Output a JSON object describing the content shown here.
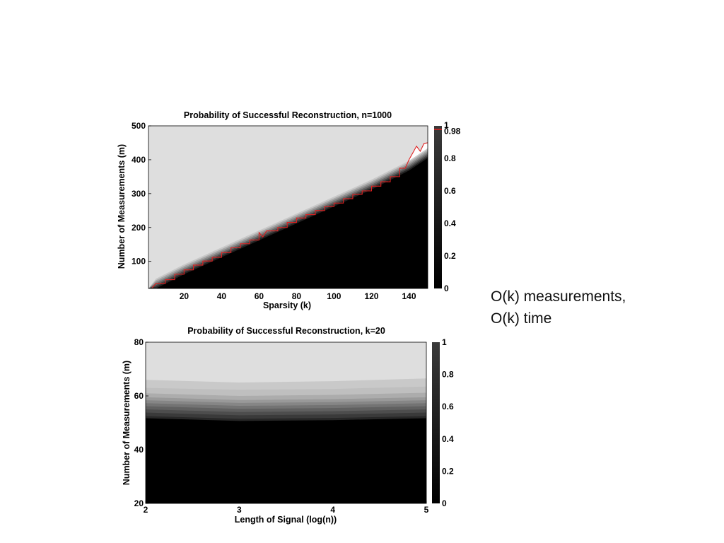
{
  "slide": {
    "caption_lines": [
      "O(k) measurements,",
      "O(k) time"
    ]
  },
  "chart_data": [
    {
      "type": "heatmap",
      "title": "Probability of Successful Reconstruction, n=1000",
      "xlabel": "Sparsity (k)",
      "ylabel": "Number of Measurements (m)",
      "xlim": [
        1,
        150
      ],
      "ylim": [
        20,
        500
      ],
      "xticks": [
        20,
        40,
        60,
        80,
        100,
        120,
        140
      ],
      "yticks": [
        100,
        200,
        300,
        400,
        500
      ],
      "colorbar": {
        "range": [
          0,
          1
        ],
        "ticks": [
          "0",
          "0.2",
          "0.4",
          "0.6",
          "0.8",
          "0.98",
          "1"
        ],
        "marker_value": 0.98
      },
      "transition_boundary": {
        "description": "failure region below, success region above",
        "points": [
          [
            5,
            20
          ],
          [
            20,
            62
          ],
          [
            40,
            112
          ],
          [
            60,
            162
          ],
          [
            80,
            212
          ],
          [
            100,
            262
          ],
          [
            120,
            312
          ],
          [
            140,
            368
          ],
          [
            150,
            405
          ]
        ]
      },
      "contour_098": {
        "color": "#e02020",
        "points": [
          [
            3,
            22
          ],
          [
            5,
            35
          ],
          [
            10,
            35
          ],
          [
            10,
            46
          ],
          [
            15,
            46
          ],
          [
            15,
            62
          ],
          [
            20,
            62
          ],
          [
            20,
            75
          ],
          [
            25,
            75
          ],
          [
            25,
            89
          ],
          [
            30,
            89
          ],
          [
            30,
            101
          ],
          [
            35,
            101
          ],
          [
            35,
            112
          ],
          [
            40,
            112
          ],
          [
            40,
            126
          ],
          [
            45,
            126
          ],
          [
            45,
            140
          ],
          [
            50,
            140
          ],
          [
            50,
            152
          ],
          [
            55,
            152
          ],
          [
            55,
            163
          ],
          [
            60,
            163
          ],
          [
            60,
            185
          ],
          [
            62,
            172
          ],
          [
            64,
            190
          ],
          [
            70,
            190
          ],
          [
            70,
            200
          ],
          [
            75,
            200
          ],
          [
            75,
            215
          ],
          [
            80,
            215
          ],
          [
            80,
            228
          ],
          [
            85,
            228
          ],
          [
            85,
            238
          ],
          [
            90,
            238
          ],
          [
            90,
            250
          ],
          [
            95,
            250
          ],
          [
            95,
            262
          ],
          [
            100,
            262
          ],
          [
            100,
            272
          ],
          [
            105,
            272
          ],
          [
            105,
            285
          ],
          [
            110,
            285
          ],
          [
            110,
            298
          ],
          [
            115,
            298
          ],
          [
            115,
            308
          ],
          [
            120,
            308
          ],
          [
            120,
            322
          ],
          [
            125,
            322
          ],
          [
            125,
            335
          ],
          [
            130,
            335
          ],
          [
            130,
            350
          ],
          [
            135,
            350
          ],
          [
            135,
            375
          ],
          [
            138,
            375
          ],
          [
            140,
            400
          ],
          [
            142,
            420
          ],
          [
            144,
            440
          ],
          [
            146,
            425
          ],
          [
            148,
            448
          ],
          [
            150,
            450
          ]
        ]
      }
    },
    {
      "type": "heatmap",
      "title": "Probability of Successful Reconstruction, k=20",
      "xlabel": "Length of Signal (log(n))",
      "ylabel": "Number of Measurements (m)",
      "xlim": [
        2,
        5
      ],
      "ylim": [
        20,
        80
      ],
      "xticks": [
        2,
        3,
        4,
        5
      ],
      "yticks": [
        20,
        40,
        60,
        80
      ],
      "colorbar": {
        "range": [
          0,
          1
        ],
        "ticks": [
          "0",
          "0.2",
          "0.4",
          "0.6",
          "0.8",
          "1"
        ]
      },
      "x": [
        2,
        3,
        4,
        5
      ],
      "contour_levels": [
        {
          "level": 0.1,
          "m": [
            52.5,
            51.5,
            51.8,
            52.5
          ]
        },
        {
          "level": 0.2,
          "m": [
            53.8,
            52.8,
            53.1,
            53.8
          ]
        },
        {
          "level": 0.3,
          "m": [
            55.0,
            54.0,
            54.3,
            55.0
          ]
        },
        {
          "level": 0.4,
          "m": [
            56.2,
            55.2,
            55.5,
            56.2
          ]
        },
        {
          "level": 0.5,
          "m": [
            57.3,
            56.3,
            56.6,
            57.3
          ]
        },
        {
          "level": 0.6,
          "m": [
            58.4,
            57.4,
            57.7,
            58.4
          ]
        },
        {
          "level": 0.7,
          "m": [
            59.5,
            58.5,
            58.8,
            59.5
          ]
        },
        {
          "level": 0.8,
          "m": [
            61.0,
            60.0,
            60.4,
            61.2
          ]
        },
        {
          "level": 0.9,
          "m": [
            63.0,
            62.3,
            62.6,
            63.5
          ]
        },
        {
          "level": 0.95,
          "m": [
            66.0,
            65.0,
            65.5,
            66.5
          ]
        }
      ]
    }
  ]
}
